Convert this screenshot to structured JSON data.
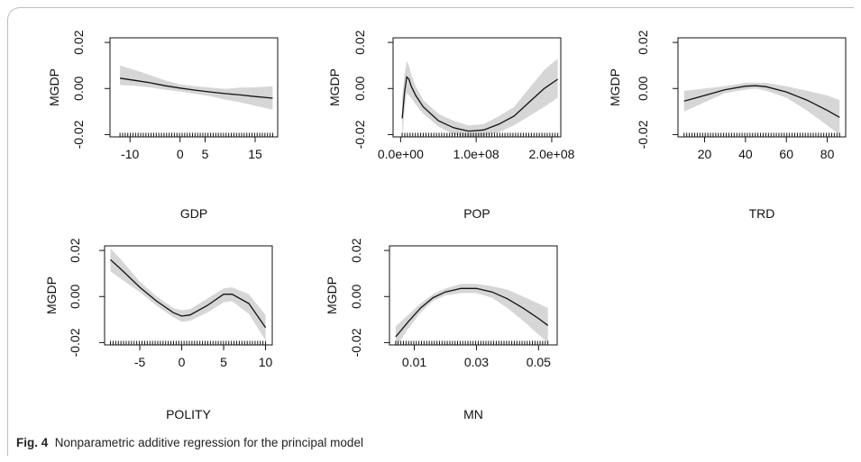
{
  "caption": {
    "label": "Fig. 4",
    "text": "Nonparametric additive regression for the principal model"
  },
  "colors": {
    "band": "#d6d6d6",
    "line": "#111111",
    "axis": "#111111"
  },
  "chart_data": [
    {
      "type": "line",
      "xlabel": "GDP",
      "ylabel": "MGDP",
      "xlim": [
        -14,
        19.5
      ],
      "ylim": [
        -0.021,
        0.022
      ],
      "xticks": [
        -10,
        0,
        5,
        15
      ],
      "yticks": [
        -0.02,
        0.0,
        0.02
      ],
      "ytick_labels": [
        "-0.02",
        "0.00",
        "0.02"
      ],
      "x": [
        -12,
        -9,
        -6,
        -3,
        0,
        3,
        6,
        9,
        12,
        15,
        18.5
      ],
      "y": [
        0.0045,
        0.0035,
        0.0025,
        0.0012,
        0.0002,
        -0.0007,
        -0.0015,
        -0.0022,
        -0.0028,
        -0.0035,
        -0.0042
      ],
      "band_lower": [
        0.0015,
        0.0012,
        0.0005,
        -0.0005,
        -0.0013,
        -0.0023,
        -0.0033,
        -0.0048,
        -0.006,
        -0.0075,
        -0.0092
      ],
      "band_upper": [
        0.01,
        0.008,
        0.0058,
        0.0035,
        0.0018,
        0.001,
        0.0004,
        -0.0002,
        0.0004,
        0.0005,
        0.001
      ]
    },
    {
      "type": "line",
      "xlabel": "POP",
      "ylabel": "MGDP",
      "xlim": [
        -10000000.0,
        212000000.0
      ],
      "ylim": [
        -0.021,
        0.022
      ],
      "xticks": [
        0,
        100000000.0,
        200000000.0
      ],
      "xtick_labels": [
        "0.0e+00",
        "1.0e+08",
        "2.0e+08"
      ],
      "yticks": [
        -0.02,
        0.0,
        0.02
      ],
      "ytick_labels": [
        "-0.02",
        "0.00",
        "0.02"
      ],
      "x": [
        2000000.0,
        5000000.0,
        8000000.0,
        11000000.0,
        14000000.0,
        20000000.0,
        30000000.0,
        50000000.0,
        70000000.0,
        90000000.0,
        110000000.0,
        130000000.0,
        150000000.0,
        170000000.0,
        190000000.0,
        208000000.0
      ],
      "y": [
        -0.013,
        -0.002,
        0.005,
        0.004,
        0.001,
        -0.003,
        -0.008,
        -0.014,
        -0.017,
        -0.0185,
        -0.018,
        -0.0155,
        -0.012,
        -0.006,
        0.0,
        0.004
      ],
      "band_lower": [
        -0.022,
        -0.01,
        -0.002,
        -0.003,
        -0.004,
        -0.007,
        -0.011,
        -0.0165,
        -0.02,
        -0.021,
        -0.0205,
        -0.019,
        -0.016,
        -0.012,
        -0.008,
        -0.004
      ],
      "band_upper": [
        -0.004,
        0.006,
        0.012,
        0.01,
        0.006,
        0.001,
        -0.005,
        -0.011,
        -0.014,
        -0.016,
        -0.0155,
        -0.012,
        -0.008,
        0.0,
        0.008,
        0.013
      ]
    },
    {
      "type": "line",
      "xlabel": "TRD",
      "ylabel": "MGDP",
      "xlim": [
        7,
        89
      ],
      "ylim": [
        -0.021,
        0.022
      ],
      "xticks": [
        20,
        40,
        60,
        80
      ],
      "yticks": [
        -0.02,
        0.0,
        0.02
      ],
      "ytick_labels": [
        "-0.02",
        "0.00",
        "0.02"
      ],
      "x": [
        10,
        20,
        30,
        40,
        45,
        50,
        60,
        70,
        80,
        86
      ],
      "y": [
        -0.0055,
        -0.003,
        -0.0005,
        0.001,
        0.0012,
        0.0008,
        -0.0015,
        -0.005,
        -0.0095,
        -0.0125
      ],
      "band_lower": [
        -0.01,
        -0.006,
        -0.002,
        -0.0005,
        0.0,
        -0.001,
        -0.004,
        -0.0095,
        -0.016,
        -0.02
      ],
      "band_upper": [
        -0.001,
        0.0,
        0.001,
        0.0025,
        0.0025,
        0.0025,
        0.001,
        -0.001,
        -0.003,
        -0.005
      ]
    },
    {
      "type": "line",
      "xlabel": "POLITY",
      "ylabel": "MGDP",
      "xlim": [
        -9.2,
        10.8
      ],
      "ylim": [
        -0.021,
        0.022
      ],
      "xticks": [
        -5,
        0,
        5,
        10
      ],
      "yticks": [
        -0.02,
        0.0,
        0.02
      ],
      "ytick_labels": [
        "-0.02",
        "0.00",
        "0.02"
      ],
      "x": [
        -8.5,
        -7,
        -5,
        -3,
        -1,
        0,
        1,
        3,
        5,
        6,
        8,
        10
      ],
      "y": [
        0.016,
        0.011,
        0.004,
        -0.002,
        -0.007,
        -0.0085,
        -0.008,
        -0.004,
        0.001,
        0.001,
        -0.003,
        -0.0135
      ],
      "band_lower": [
        0.011,
        0.007,
        0.002,
        -0.004,
        -0.009,
        -0.011,
        -0.0105,
        -0.007,
        -0.0025,
        -0.002,
        -0.0075,
        -0.019
      ],
      "band_upper": [
        0.021,
        0.015,
        0.0065,
        0.0,
        -0.005,
        -0.006,
        -0.0055,
        -0.001,
        0.0035,
        0.004,
        0.001,
        -0.008
      ]
    },
    {
      "type": "line",
      "xlabel": "MN",
      "ylabel": "MGDP",
      "xlim": [
        0.002,
        0.056
      ],
      "ylim": [
        -0.021,
        0.022
      ],
      "xticks": [
        0.01,
        0.03,
        0.05
      ],
      "yticks": [
        -0.02,
        0.0,
        0.02
      ],
      "ytick_labels": [
        "-0.02",
        "0.00",
        "0.02"
      ],
      "x": [
        0.004,
        0.008,
        0.012,
        0.016,
        0.02,
        0.025,
        0.03,
        0.035,
        0.04,
        0.045,
        0.05,
        0.053
      ],
      "y": [
        -0.0175,
        -0.011,
        -0.005,
        -0.0005,
        0.002,
        0.0035,
        0.0035,
        0.002,
        -0.001,
        -0.005,
        -0.0095,
        -0.0125
      ],
      "band_lower": [
        -0.022,
        -0.014,
        -0.007,
        -0.002,
        0.0005,
        0.0015,
        0.0015,
        -0.0005,
        -0.005,
        -0.0105,
        -0.0165,
        -0.02
      ],
      "band_upper": [
        -0.013,
        -0.008,
        -0.003,
        0.001,
        0.0035,
        0.0055,
        0.0055,
        0.0045,
        0.003,
        0.0,
        -0.003,
        -0.005
      ]
    }
  ]
}
